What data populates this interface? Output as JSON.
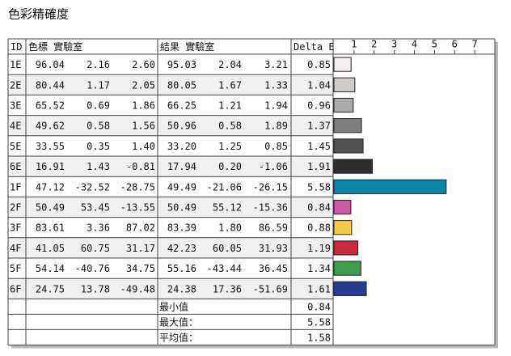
{
  "title": "色彩精確度",
  "table": {
    "headers": [
      "ID",
      "色標 實驗室",
      "結果 實驗室",
      "Delta E"
    ],
    "rows": [
      [
        "1E",
        "96.04",
        "2.16",
        "2.60",
        "95.03",
        "2.04",
        "3.21",
        "0.85"
      ],
      [
        "2E",
        "80.44",
        "1.17",
        "2.05",
        "80.05",
        "1.67",
        "1.33",
        "1.04"
      ],
      [
        "3E",
        "65.52",
        "0.69",
        "1.86",
        "66.25",
        "1.21",
        "1.94",
        "0.96"
      ],
      [
        "4E",
        "49.62",
        "0.58",
        "1.56",
        "50.96",
        "0.58",
        "1.89",
        "1.37"
      ],
      [
        "5E",
        "33.55",
        "0.35",
        "1.40",
        "33.20",
        "1.25",
        "0.85",
        "1.45"
      ],
      [
        "6E",
        "16.91",
        "1.43",
        "-0.81",
        "17.94",
        "0.20",
        "-1.06",
        "1.91"
      ],
      [
        "1F",
        "47.12",
        "-32.52",
        "-28.75",
        "49.49",
        "-21.06",
        "-26.15",
        "5.58"
      ],
      [
        "2F",
        "50.49",
        "53.45",
        "-13.55",
        "50.49",
        "55.12",
        "-15.36",
        "0.84"
      ],
      [
        "3F",
        "83.61",
        "3.36",
        "87.02",
        "83.39",
        "1.80",
        "86.59",
        "0.88"
      ],
      [
        "4F",
        "41.05",
        "60.75",
        "31.17",
        "42.23",
        "60.05",
        "31.93",
        "1.19"
      ],
      [
        "5F",
        "54.14",
        "-40.76",
        "34.75",
        "55.16",
        "-43.44",
        "36.45",
        "1.34"
      ],
      [
        "6F",
        "24.75",
        "13.78",
        "-49.48",
        "24.38",
        "17.36",
        "-51.69",
        "1.61"
      ]
    ],
    "summary": [
      [
        "最小值",
        "0.84"
      ],
      [
        "最大值：",
        "5.58"
      ],
      [
        "平均值：",
        "1.58"
      ]
    ]
  },
  "chart_data": {
    "type": "bar",
    "values": [
      0.85,
      1.04,
      0.96,
      1.37,
      1.45,
      1.91,
      5.58,
      0.84,
      0.88,
      1.19,
      1.34,
      1.61
    ],
    "colors": [
      "#f2eeee",
      "#cfcccc",
      "#aba9a9",
      "#7e7e7e",
      "#505050",
      "#2e2e2e",
      "#0b86a5",
      "#c95aa1",
      "#f6c943",
      "#c9283d",
      "#3d9c4d",
      "#283d8d"
    ],
    "xlim": [
      0,
      8
    ],
    "xticks": [
      1,
      2,
      3,
      4,
      5,
      6,
      7
    ]
  }
}
